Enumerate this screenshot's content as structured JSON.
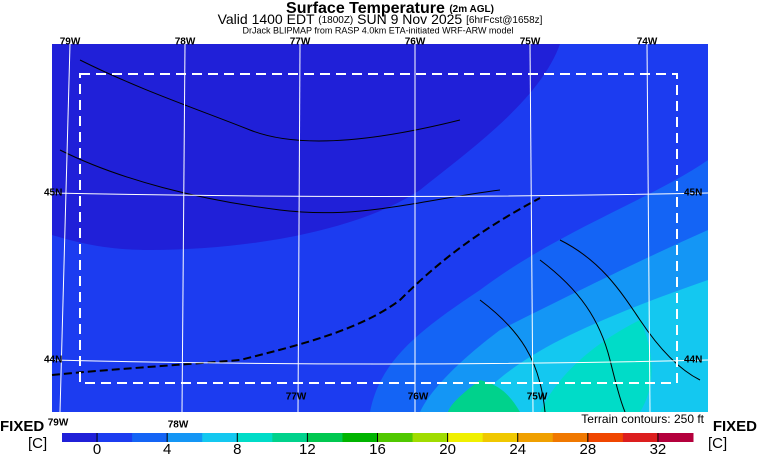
{
  "header": {
    "title": "Surface Temperature",
    "title_note": "(2m AGL)",
    "valid": "Valid 1400 EDT",
    "valid_note": "(1800Z)",
    "date": "SUN 9 Nov 2025",
    "forecast": "[6hrFcst@1658z]",
    "source": "DrJack BLIPMAP from RASP 4.0km ETA-initiated WRF-ARW model"
  },
  "map": {
    "top_lon_labels": [
      "79W",
      "78W",
      "77W",
      "76W",
      "75W",
      "74W"
    ],
    "bottom_lon_labels": [
      "79W",
      "78W",
      "77W",
      "76W",
      "75W"
    ],
    "left_lat_labels": [
      "45N",
      "44N"
    ],
    "right_lat_labels": [
      "45N",
      "44N"
    ],
    "terrain_note": "Terrain contours: 250 ft"
  },
  "legend": {
    "left_label": "FIXED",
    "left_unit": "[C]",
    "right_label": "FIXED",
    "right_unit": "[C]",
    "range": [
      -2,
      34
    ],
    "ticks": [
      0,
      4,
      8,
      12,
      16,
      20,
      24,
      28,
      32
    ],
    "colors": [
      "#2020d8",
      "#1c3cf0",
      "#1464f5",
      "#1496f5",
      "#14c8f0",
      "#00dcc8",
      "#00d28c",
      "#00c850",
      "#00b400",
      "#50c800",
      "#a0dc00",
      "#f0f000",
      "#f0c800",
      "#f0a000",
      "#f07800",
      "#f04600",
      "#dc1e1e",
      "#b4003c"
    ]
  }
}
